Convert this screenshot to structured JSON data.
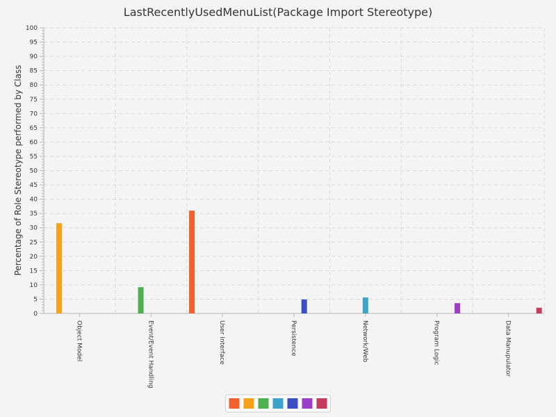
{
  "chart_data": {
    "type": "bar",
    "title": "LastRecentlyUsedMenuList(Package Import Stereotype)",
    "xlabel": "",
    "ylabel": "Percentage of Role Stereotype performed by Class",
    "ylim": [
      0,
      100
    ],
    "y_major_step": 5,
    "y_minor_step": 1,
    "grid": true,
    "legend_position": "bottom",
    "categories": [
      "Object Model",
      "Event/Event Handling",
      "User Interface",
      "Persistence",
      "Network/Web",
      "Program Logic",
      "Data Manupulator"
    ],
    "series": [
      {
        "color": "#f26130",
        "values": [
          0,
          0,
          36,
          0,
          0,
          0,
          0
        ]
      },
      {
        "color": "#f5a21b",
        "values": [
          31.6,
          0,
          0,
          0,
          0,
          0,
          0
        ]
      },
      {
        "color": "#4fb04f",
        "values": [
          0,
          9.2,
          0,
          0,
          0,
          0,
          0
        ]
      },
      {
        "color": "#3ea2c9",
        "values": [
          0,
          0,
          0,
          0,
          5.6,
          0,
          0
        ]
      },
      {
        "color": "#3b4fc4",
        "values": [
          0,
          0,
          0,
          4.9,
          0,
          0,
          0
        ]
      },
      {
        "color": "#9b3fc7",
        "values": [
          0,
          0,
          0,
          0,
          0,
          3.6,
          0
        ]
      },
      {
        "color": "#c43c5e",
        "values": [
          0,
          0,
          0,
          0,
          0,
          0,
          2
        ]
      }
    ]
  }
}
